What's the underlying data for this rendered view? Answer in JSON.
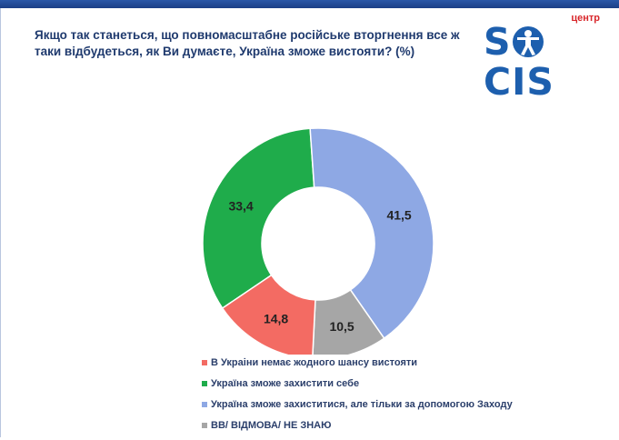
{
  "header": {
    "title": "Якщо так станеться, що повномасштабне російське вторгнення все ж таки відбудеться, як Ви думаєте, Україна зможе вистояти? (%)"
  },
  "logo": {
    "small_text": "центр",
    "main_text_left": "S",
    "main_text_right": "CIS",
    "icon": "vitruvian-figure-icon"
  },
  "chart_data": {
    "type": "pie",
    "donut": true,
    "title": "Якщо так станеться, що повномасштабне російське вторгнення все ж таки відбудеться, як Ви думаєте, Україна зможе вистояти? (%)",
    "categories": [
      "Україна зможе захистити себе",
      "Україна зможе захиститися, але тільки за допомогою Заходу",
      "ВВ/ ВІДМОВА/ НЕ ЗНАЮ",
      "В Украіни немає жодного шансу вистояти"
    ],
    "values": [
      33.4,
      41.5,
      10.5,
      14.8
    ],
    "value_labels": [
      "33,4",
      "41,5",
      "10,5",
      "14,8"
    ],
    "colors": [
      "#1fac4b",
      "#8ea8e4",
      "#a6a6a6",
      "#f36b63"
    ],
    "legend_placement": "bottom",
    "legend": [
      {
        "label": "В Украіни немає жодного шансу вистояти",
        "color": "#f36b63"
      },
      {
        "label": "Україна зможе захистити себе",
        "color": "#1fac4b"
      },
      {
        "label": "Україна зможе захиститися, але тільки за допомогою Заходу",
        "color": "#8ea8e4"
      },
      {
        "label": "ВВ/ ВІДМОВА/ НЕ ЗНАЮ",
        "color": "#a6a6a6"
      }
    ]
  }
}
